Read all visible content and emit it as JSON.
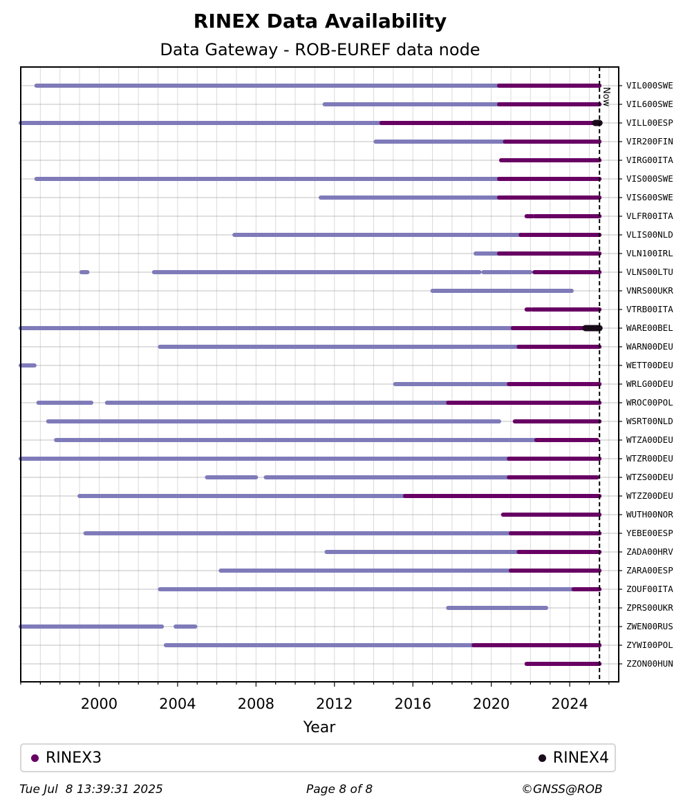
{
  "chart_data": {
    "type": "timeline",
    "title": "RINEX Data Availability",
    "subtitle": "Data Gateway - ROB-EUREF data node",
    "xlabel": "Year",
    "xlim": [
      1996.0,
      2026.5
    ],
    "xticks": [
      2000,
      2004,
      2008,
      2012,
      2016,
      2020,
      2024
    ],
    "now": 2025.52,
    "now_label": "Now",
    "colors": {
      "RINEX2": "#7f7bb9",
      "RINEX3": "#680063",
      "RINEX4": "#1a0b1b"
    },
    "legend": [
      {
        "name": "RINEX3",
        "color": "#680063"
      },
      {
        "name": "RINEX4",
        "color": "#1a0b1b"
      }
    ],
    "stations": [
      {
        "name": "VIL000SWE",
        "segments": [
          [
            1996.8,
            2020.4,
            "RINEX2"
          ],
          [
            2020.4,
            2025.52,
            "RINEX3"
          ]
        ]
      },
      {
        "name": "VIL600SWE",
        "segments": [
          [
            2011.5,
            2020.4,
            "RINEX2"
          ],
          [
            2020.4,
            2025.52,
            "RINEX3"
          ]
        ]
      },
      {
        "name": "VILL00ESP",
        "segments": [
          [
            1996.0,
            2014.4,
            "RINEX2"
          ],
          [
            2014.4,
            2025.3,
            "RINEX3"
          ],
          [
            2025.3,
            2025.52,
            "RINEX4"
          ]
        ]
      },
      {
        "name": "VIR200FIN",
        "segments": [
          [
            2014.1,
            2020.7,
            "RINEX2"
          ],
          [
            2020.7,
            2025.52,
            "RINEX3"
          ]
        ]
      },
      {
        "name": "VIRG00ITA",
        "segments": [
          [
            2020.5,
            2025.52,
            "RINEX3"
          ]
        ]
      },
      {
        "name": "VIS000SWE",
        "segments": [
          [
            1996.8,
            2020.4,
            "RINEX2"
          ],
          [
            2020.4,
            2025.52,
            "RINEX3"
          ]
        ]
      },
      {
        "name": "VIS600SWE",
        "segments": [
          [
            2011.3,
            2020.4,
            "RINEX2"
          ],
          [
            2020.4,
            2025.52,
            "RINEX3"
          ]
        ]
      },
      {
        "name": "VLFR00ITA",
        "segments": [
          [
            2021.8,
            2022.1,
            "RINEX3"
          ],
          [
            2022.2,
            2025.52,
            "RINEX3"
          ]
        ]
      },
      {
        "name": "VLIS00NLD",
        "segments": [
          [
            2006.9,
            2021.5,
            "RINEX2"
          ],
          [
            2021.5,
            2025.52,
            "RINEX3"
          ]
        ]
      },
      {
        "name": "VLN100IRL",
        "segments": [
          [
            2019.2,
            2020.4,
            "RINEX2"
          ],
          [
            2020.4,
            2025.52,
            "RINEX3"
          ]
        ]
      },
      {
        "name": "VLNS00LTU",
        "segments": [
          [
            1999.1,
            1999.4,
            "RINEX2"
          ],
          [
            2002.8,
            2019.4,
            "RINEX2"
          ],
          [
            2019.6,
            2022.0,
            "RINEX2"
          ],
          [
            2022.2,
            2025.52,
            "RINEX3"
          ]
        ]
      },
      {
        "name": "VNRS00UKR",
        "segments": [
          [
            2017.0,
            2024.1,
            "RINEX2"
          ]
        ]
      },
      {
        "name": "VTRB00ITA",
        "segments": [
          [
            2021.8,
            2022.0,
            "RINEX3"
          ],
          [
            2022.1,
            2025.52,
            "RINEX3"
          ]
        ]
      },
      {
        "name": "WARE00BEL",
        "segments": [
          [
            1996.0,
            2021.1,
            "RINEX2"
          ],
          [
            2021.1,
            2024.8,
            "RINEX3"
          ],
          [
            2024.8,
            2025.52,
            "RINEX4"
          ]
        ]
      },
      {
        "name": "WARN00DEU",
        "segments": [
          [
            2003.1,
            2021.4,
            "RINEX2"
          ],
          [
            2021.4,
            2025.52,
            "RINEX3"
          ]
        ]
      },
      {
        "name": "WETT00DEU",
        "segments": [
          [
            1996.0,
            1996.7,
            "RINEX2"
          ]
        ]
      },
      {
        "name": "WRLG00DEU",
        "segments": [
          [
            2015.1,
            2020.9,
            "RINEX2"
          ],
          [
            2020.9,
            2025.52,
            "RINEX3"
          ]
        ]
      },
      {
        "name": "WROC00POL",
        "segments": [
          [
            1996.9,
            1999.6,
            "RINEX2"
          ],
          [
            2000.4,
            2017.8,
            "RINEX2"
          ],
          [
            2017.8,
            2025.52,
            "RINEX3"
          ]
        ]
      },
      {
        "name": "WSRT00NLD",
        "segments": [
          [
            1997.4,
            2020.4,
            "RINEX2"
          ],
          [
            2021.2,
            2025.52,
            "RINEX3"
          ]
        ]
      },
      {
        "name": "WTZA00DEU",
        "segments": [
          [
            1997.8,
            2022.7,
            "RINEX2"
          ],
          [
            2022.3,
            2025.4,
            "RINEX3"
          ]
        ]
      },
      {
        "name": "WTZR00DEU",
        "segments": [
          [
            1996.0,
            2020.9,
            "RINEX2"
          ],
          [
            2020.9,
            2025.52,
            "RINEX3"
          ]
        ]
      },
      {
        "name": "WTZS00DEU",
        "segments": [
          [
            2005.5,
            2008.0,
            "RINEX2"
          ],
          [
            2008.5,
            2020.9,
            "RINEX2"
          ],
          [
            2020.9,
            2025.4,
            "RINEX3"
          ]
        ]
      },
      {
        "name": "WTZZ00DEU",
        "segments": [
          [
            1999.0,
            2015.6,
            "RINEX2"
          ],
          [
            2015.6,
            2025.52,
            "RINEX3"
          ]
        ]
      },
      {
        "name": "WUTH00NOR",
        "segments": [
          [
            2020.6,
            2025.52,
            "RINEX3"
          ]
        ]
      },
      {
        "name": "YEBE00ESP",
        "segments": [
          [
            1999.3,
            2021.0,
            "RINEX2"
          ],
          [
            2021.0,
            2025.52,
            "RINEX3"
          ]
        ]
      },
      {
        "name": "ZADA00HRV",
        "segments": [
          [
            2011.6,
            2021.4,
            "RINEX2"
          ],
          [
            2021.4,
            2025.52,
            "RINEX3"
          ]
        ]
      },
      {
        "name": "ZARA00ESP",
        "segments": [
          [
            2006.2,
            2021.0,
            "RINEX2"
          ],
          [
            2021.0,
            2025.52,
            "RINEX3"
          ]
        ]
      },
      {
        "name": "ZOUF00ITA",
        "segments": [
          [
            2003.1,
            2024.2,
            "RINEX2"
          ],
          [
            2024.2,
            2025.52,
            "RINEX3"
          ]
        ]
      },
      {
        "name": "ZPRS00UKR",
        "segments": [
          [
            2017.8,
            2022.8,
            "RINEX2"
          ]
        ]
      },
      {
        "name": "ZWEN00RUS",
        "segments": [
          [
            1996.0,
            2003.2,
            "RINEX2"
          ],
          [
            2003.9,
            2004.9,
            "RINEX2"
          ]
        ]
      },
      {
        "name": "ZYWI00POL",
        "segments": [
          [
            2003.4,
            2019.1,
            "RINEX2"
          ],
          [
            2019.1,
            2025.52,
            "RINEX3"
          ]
        ]
      },
      {
        "name": "ZZON00HUN",
        "segments": [
          [
            2021.8,
            2025.52,
            "RINEX3"
          ]
        ]
      }
    ]
  },
  "footer": {
    "timestamp": "Tue Jul  8 13:39:31 2025",
    "page": "Page 8 of 8",
    "copyright": "©GNSS@ROB"
  }
}
